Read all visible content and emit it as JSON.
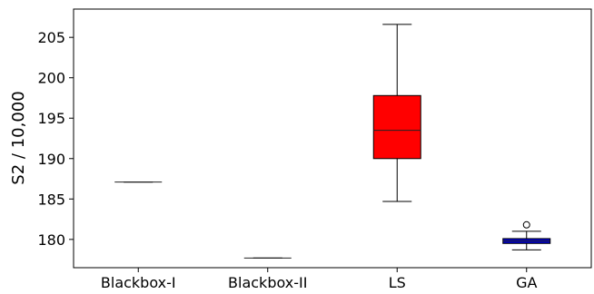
{
  "chart_data": {
    "type": "box",
    "title": "",
    "xlabel": "",
    "ylabel": "S2 / 10,000",
    "ylim": [
      176.5,
      208.5
    ],
    "yticks": [
      180,
      185,
      190,
      195,
      200,
      205
    ],
    "grid": false,
    "categories": [
      "Blackbox-I",
      "Blackbox-II",
      "LS",
      "GA"
    ],
    "boxes": [
      {
        "category": "Blackbox-I",
        "whisker_low": 187.1,
        "q1": 187.1,
        "median": 187.1,
        "q3": 187.1,
        "whisker_high": 187.1,
        "outliers": [],
        "color": "#ff0000"
      },
      {
        "category": "Blackbox-II",
        "whisker_low": 177.7,
        "q1": 177.7,
        "median": 177.7,
        "q3": 177.7,
        "whisker_high": 177.7,
        "outliers": [],
        "color": "#ff0000"
      },
      {
        "category": "LS",
        "whisker_low": 184.7,
        "q1": 190.0,
        "median": 193.5,
        "q3": 197.8,
        "whisker_high": 206.6,
        "outliers": [],
        "color": "#ff0000"
      },
      {
        "category": "GA",
        "whisker_low": 178.7,
        "q1": 179.5,
        "median": 179.8,
        "q3": 180.1,
        "whisker_high": 181.0,
        "outliers": [
          181.8
        ],
        "color": "#0000cc"
      }
    ]
  }
}
